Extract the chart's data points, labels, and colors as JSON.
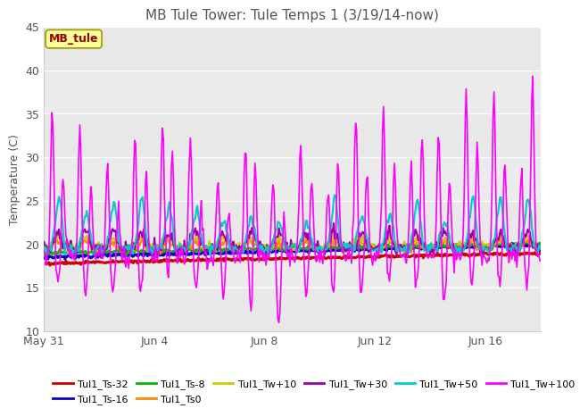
{
  "title": "MB Tule Tower: Tule Temps 1 (3/19/14-now)",
  "ylabel": "Temperature (C)",
  "ylim": [
    10,
    45
  ],
  "yticks": [
    10,
    15,
    20,
    25,
    30,
    35,
    40,
    45
  ],
  "xlim": [
    0,
    18
  ],
  "xtick_labels": [
    "May 31",
    "Jun 4",
    "Jun 8",
    "Jun 12",
    "Jun 16"
  ],
  "xtick_positions": [
    0,
    4,
    8,
    12,
    16
  ],
  "background_color": "#ffffff",
  "plot_bg_color": "#e8e8e8",
  "band_light": "#ebebeb",
  "series": [
    {
      "label": "Tul1_Ts-32",
      "color": "#cc0000",
      "lw": 2.2
    },
    {
      "label": "Tul1_Ts-16",
      "color": "#0000cc",
      "lw": 2.2
    },
    {
      "label": "Tul1_Ts-8",
      "color": "#00bb00",
      "lw": 1.8
    },
    {
      "label": "Tul1_Ts0",
      "color": "#ff8800",
      "lw": 1.5
    },
    {
      "label": "Tul1_Tw+10",
      "color": "#cccc00",
      "lw": 1.5
    },
    {
      "label": "Tul1_Tw+30",
      "color": "#9900aa",
      "lw": 1.5
    },
    {
      "label": "Tul1_Tw+50",
      "color": "#00cccc",
      "lw": 1.5
    },
    {
      "label": "Tul1_Tw+100",
      "color": "#ff00ff",
      "lw": 1.2
    }
  ],
  "annotation_text": "MB_tule",
  "figsize": [
    6.4,
    4.8
  ],
  "dpi": 100
}
